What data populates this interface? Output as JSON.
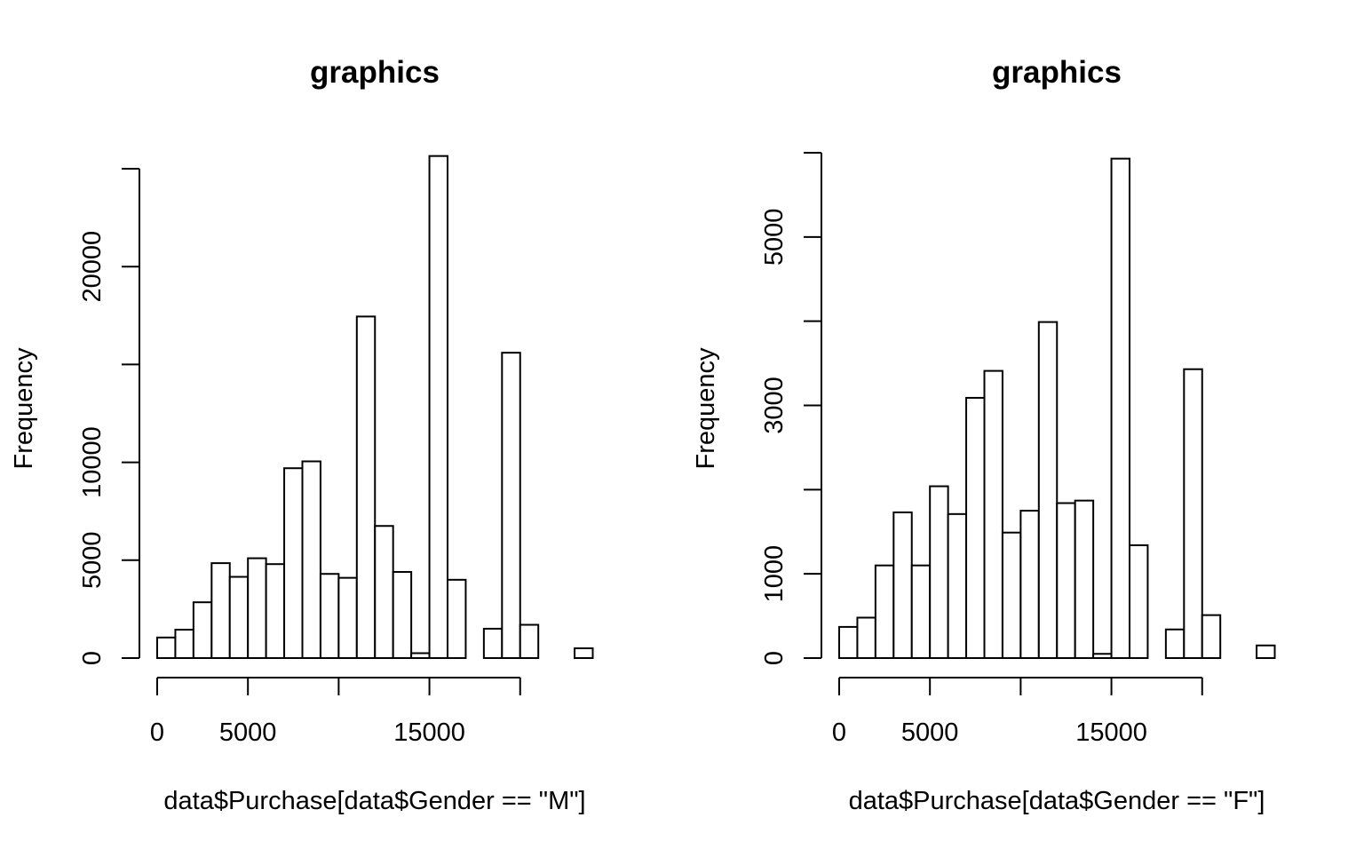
{
  "chart_data": [
    {
      "type": "bar",
      "title": "graphics",
      "xlabel": "data$Purchase[data$Gender == \"M\"]",
      "ylabel": "Frequency",
      "x_ticks": [
        0,
        5000,
        10000,
        15000,
        20000
      ],
      "x_tick_labels": [
        "0",
        "5000",
        "",
        "15000",
        ""
      ],
      "y_ticks": [
        0,
        5000,
        10000,
        15000,
        20000,
        25000
      ],
      "y_tick_labels": [
        "0",
        "5000",
        "10000",
        "",
        "20000",
        ""
      ],
      "xlim": [
        0,
        24000
      ],
      "ylim": [
        0,
        25000
      ],
      "bin_width": 1000,
      "bin_starts": [
        0,
        1000,
        2000,
        3000,
        4000,
        5000,
        6000,
        7000,
        8000,
        9000,
        10000,
        11000,
        12000,
        13000,
        14000,
        15000,
        16000,
        17000,
        18000,
        19000,
        20000,
        21000,
        22000,
        23000
      ],
      "values": [
        1050,
        1450,
        2850,
        4850,
        4150,
        5100,
        4800,
        9700,
        10050,
        4300,
        4100,
        17450,
        6750,
        4400,
        250,
        25650,
        4000,
        0,
        1500,
        15600,
        1700,
        0,
        0,
        500
      ]
    },
    {
      "type": "bar",
      "title": "graphics",
      "xlabel": "data$Purchase[data$Gender == \"F\"]",
      "ylabel": "Frequency",
      "x_ticks": [
        0,
        5000,
        10000,
        15000,
        20000
      ],
      "x_tick_labels": [
        "0",
        "5000",
        "",
        "15000",
        ""
      ],
      "y_ticks": [
        0,
        1000,
        2000,
        3000,
        4000,
        5000,
        6000
      ],
      "y_tick_labels": [
        "0",
        "1000",
        "",
        "3000",
        "",
        "5000",
        ""
      ],
      "xlim": [
        0,
        24000
      ],
      "ylim": [
        0,
        6000
      ],
      "bin_width": 1000,
      "bin_starts": [
        0,
        1000,
        2000,
        3000,
        4000,
        5000,
        6000,
        7000,
        8000,
        9000,
        10000,
        11000,
        12000,
        13000,
        14000,
        15000,
        16000,
        17000,
        18000,
        19000,
        20000,
        21000,
        22000,
        23000
      ],
      "values": [
        370,
        480,
        1100,
        1730,
        1100,
        2040,
        1710,
        3090,
        3410,
        1490,
        1750,
        3990,
        1840,
        1870,
        50,
        5930,
        1340,
        0,
        340,
        3430,
        510,
        0,
        0,
        150
      ]
    }
  ]
}
